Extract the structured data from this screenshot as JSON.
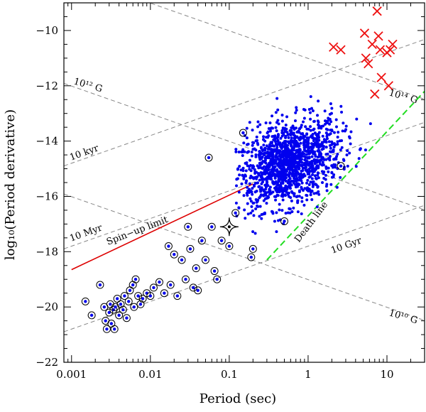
{
  "chart_data": {
    "type": "scatter",
    "title": "",
    "xlabel": "Period (sec)",
    "ylabel": "log₁₀(Period derivative)",
    "xscale": "log",
    "xlim": [
      0.0008,
      30
    ],
    "ylim": [
      -22,
      -9
    ],
    "xticks": [
      0.001,
      0.01,
      0.1,
      1,
      10
    ],
    "xtick_labels": [
      "0.001",
      "0.01",
      "0.1",
      "1",
      "10"
    ],
    "yticks": [
      -22,
      -20,
      -18,
      -16,
      -14,
      -12,
      -10
    ],
    "ytick_labels": [
      "−22",
      "−20",
      "−18",
      "−16",
      "−14",
      "−12",
      "−10"
    ],
    "grid": false,
    "colors": {
      "pulsars": "#0000ee",
      "magnetars": "#ee1111",
      "spinup_limit": "#dd0000",
      "death_line": "#22dd22",
      "guide_lines": "#888888"
    },
    "annotations": {
      "b12": "10¹² G",
      "b14": "10¹⁴ G",
      "b10": "10¹⁰ G",
      "age_kyr": "10 kyr",
      "age_myr": "10 Myr",
      "age_gyr": "10 Gyr",
      "spinup": "Spin−up limit",
      "death": "Death line"
    },
    "field_lines": [
      {
        "name": "10¹⁰ G",
        "logB": 10
      },
      {
        "name": "10¹² G",
        "logB": 12
      },
      {
        "name": "10¹⁴ G",
        "logB": 14
      }
    ],
    "age_lines": [
      {
        "name": "10 kyr",
        "log_age_yr": 4
      },
      {
        "name": "10 Myr",
        "log_age_yr": 7
      },
      {
        "name": "10 Gyr",
        "log_age_yr": 10
      }
    ],
    "spinup_limit": {
      "x": [
        0.001,
        0.2
      ],
      "y": [
        -18.65,
        -15.55
      ]
    },
    "death_line": {
      "x": [
        0.3,
        30
      ],
      "y": [
        -18.3,
        -12.2
      ]
    },
    "magnetars": [
      {
        "x": 2.1,
        "y": -10.6
      },
      {
        "x": 2.6,
        "y": -10.7
      },
      {
        "x": 5.2,
        "y": -10.1
      },
      {
        "x": 5.4,
        "y": -11.0
      },
      {
        "x": 5.8,
        "y": -11.2
      },
      {
        "x": 6.5,
        "y": -10.5
      },
      {
        "x": 7.5,
        "y": -9.3
      },
      {
        "x": 7.8,
        "y": -10.2
      },
      {
        "x": 7.0,
        "y": -12.3
      },
      {
        "x": 8.2,
        "y": -10.7
      },
      {
        "x": 8.5,
        "y": -11.7
      },
      {
        "x": 10.0,
        "y": -10.8
      },
      {
        "x": 10.5,
        "y": -12.0
      },
      {
        "x": 11.8,
        "y": -10.5
      },
      {
        "x": 11.0,
        "y": -10.7
      }
    ],
    "binary_pulsars": [
      {
        "x": 0.0015,
        "y": -19.8
      },
      {
        "x": 0.0018,
        "y": -20.3
      },
      {
        "x": 0.0023,
        "y": -19.2
      },
      {
        "x": 0.0026,
        "y": -20.0
      },
      {
        "x": 0.0027,
        "y": -20.5
      },
      {
        "x": 0.0028,
        "y": -20.8
      },
      {
        "x": 0.003,
        "y": -20.2
      },
      {
        "x": 0.0031,
        "y": -19.9
      },
      {
        "x": 0.0032,
        "y": -20.6
      },
      {
        "x": 0.0034,
        "y": -20.1
      },
      {
        "x": 0.0035,
        "y": -20.8
      },
      {
        "x": 0.0036,
        "y": -20.0
      },
      {
        "x": 0.0038,
        "y": -19.7
      },
      {
        "x": 0.004,
        "y": -20.3
      },
      {
        "x": 0.0042,
        "y": -19.9
      },
      {
        "x": 0.0045,
        "y": -20.1
      },
      {
        "x": 0.0047,
        "y": -19.6
      },
      {
        "x": 0.005,
        "y": -20.4
      },
      {
        "x": 0.0053,
        "y": -19.8
      },
      {
        "x": 0.0055,
        "y": -19.4
      },
      {
        "x": 0.006,
        "y": -19.2
      },
      {
        "x": 0.0062,
        "y": -20.0
      },
      {
        "x": 0.0065,
        "y": -19.0
      },
      {
        "x": 0.007,
        "y": -19.6
      },
      {
        "x": 0.0075,
        "y": -19.9
      },
      {
        "x": 0.008,
        "y": -19.7
      },
      {
        "x": 0.009,
        "y": -19.5
      },
      {
        "x": 0.01,
        "y": -19.6
      },
      {
        "x": 0.011,
        "y": -19.3
      },
      {
        "x": 0.013,
        "y": -19.1
      },
      {
        "x": 0.015,
        "y": -19.5
      },
      {
        "x": 0.017,
        "y": -17.8
      },
      {
        "x": 0.018,
        "y": -19.2
      },
      {
        "x": 0.02,
        "y": -18.1
      },
      {
        "x": 0.022,
        "y": -19.6
      },
      {
        "x": 0.025,
        "y": -18.3
      },
      {
        "x": 0.028,
        "y": -19.0
      },
      {
        "x": 0.03,
        "y": -17.1
      },
      {
        "x": 0.032,
        "y": -17.9
      },
      {
        "x": 0.035,
        "y": -19.3
      },
      {
        "x": 0.038,
        "y": -18.6
      },
      {
        "x": 0.04,
        "y": -19.4
      },
      {
        "x": 0.045,
        "y": -17.6
      },
      {
        "x": 0.05,
        "y": -18.3
      },
      {
        "x": 0.055,
        "y": -14.6
      },
      {
        "x": 0.06,
        "y": -17.1
      },
      {
        "x": 0.065,
        "y": -18.7
      },
      {
        "x": 0.07,
        "y": -19.0
      },
      {
        "x": 0.08,
        "y": -17.6
      },
      {
        "x": 0.1,
        "y": -17.8
      },
      {
        "x": 0.12,
        "y": -16.6
      },
      {
        "x": 0.15,
        "y": -13.7
      },
      {
        "x": 0.19,
        "y": -18.2
      },
      {
        "x": 0.2,
        "y": -17.9
      },
      {
        "x": 0.5,
        "y": -16.9
      },
      {
        "x": 2.6,
        "y": -14.9
      }
    ],
    "special_marker": {
      "x": 0.1,
      "y": -17.1
    },
    "pulsar_cloud": {
      "x_range": [
        0.12,
        8
      ],
      "y_range": [
        -17.5,
        -11.8
      ]
    }
  }
}
